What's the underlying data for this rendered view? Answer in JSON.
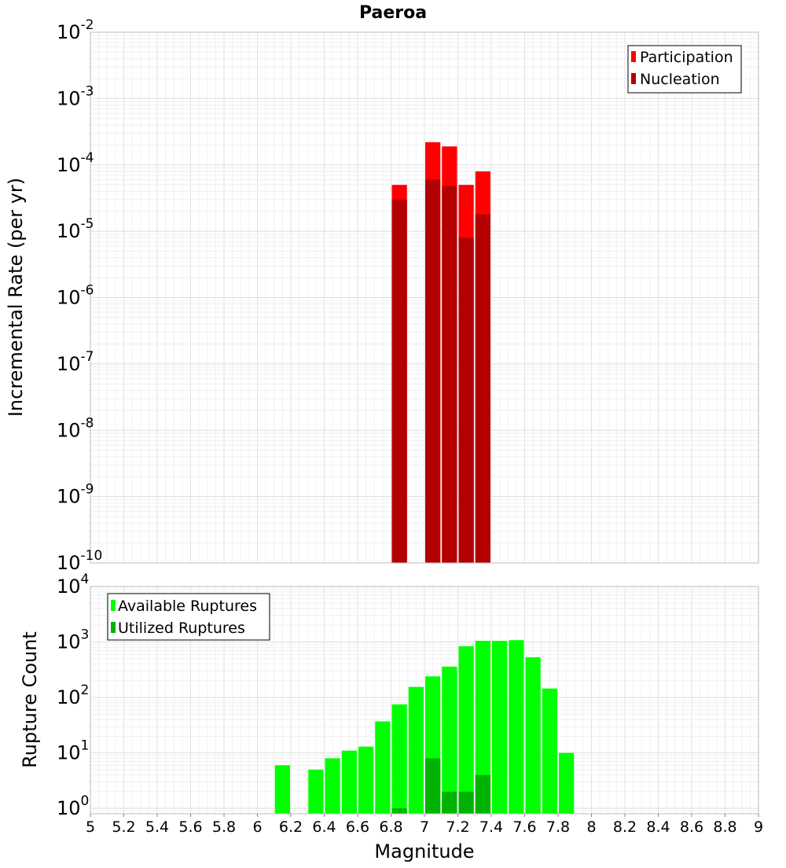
{
  "chart_data": [
    {
      "type": "bar",
      "title": "Paeroa",
      "xlabel": "",
      "ylabel": "Incremental Rate (per yr)",
      "yscale": "log",
      "ylim": [
        1e-10,
        0.01
      ],
      "xlim": [
        5,
        9
      ],
      "bin_width": 0.1,
      "legend_position": "top-right",
      "legend": [
        {
          "name": "Participation",
          "color": "#ff0000"
        },
        {
          "name": "Nucleation",
          "color": "#b30000"
        }
      ],
      "series": [
        {
          "name": "Participation",
          "color": "#ff0000",
          "x": [
            6.85,
            7.05,
            7.15,
            7.25,
            7.35
          ],
          "values": [
            5e-05,
            0.00022,
            0.00019,
            5e-05,
            8e-05
          ]
        },
        {
          "name": "Nucleation",
          "color": "#b30000",
          "x": [
            6.85,
            7.05,
            7.15,
            7.25,
            7.35
          ],
          "values": [
            3e-05,
            6e-05,
            4.8e-05,
            8e-06,
            1.8e-05
          ]
        }
      ],
      "ytick_exponents": [
        "-10",
        "-9",
        "-8",
        "-7",
        "-6",
        "-5",
        "-4",
        "-3",
        "-2"
      ]
    },
    {
      "type": "bar",
      "title": "",
      "xlabel": "Magnitude",
      "ylabel": "Rupture Count",
      "yscale": "log",
      "ylim": [
        0.8,
        10000
      ],
      "xlim": [
        5,
        9
      ],
      "bin_width": 0.1,
      "legend_position": "top-left",
      "legend": [
        {
          "name": "Available Ruptures",
          "color": "#00ff00"
        },
        {
          "name": "Utilized Ruptures",
          "color": "#00b300"
        }
      ],
      "series": [
        {
          "name": "Available Ruptures",
          "color": "#00ff00",
          "x": [
            6.15,
            6.35,
            6.45,
            6.55,
            6.65,
            6.75,
            6.85,
            6.95,
            7.05,
            7.15,
            7.25,
            7.35,
            7.45,
            7.55,
            7.65,
            7.75,
            7.85
          ],
          "values": [
            6,
            5,
            8,
            11,
            13,
            37,
            75,
            155,
            240,
            360,
            840,
            1050,
            1050,
            1080,
            530,
            145,
            10
          ]
        },
        {
          "name": "Utilized Ruptures",
          "color": "#00b300",
          "x": [
            6.85,
            7.05,
            7.15,
            7.25,
            7.35
          ],
          "values": [
            1,
            8,
            2,
            2,
            4
          ]
        }
      ],
      "ytick_exponents": [
        "0",
        "1",
        "2",
        "3",
        "4"
      ],
      "xtick_labels": [
        "5",
        "5.2",
        "5.4",
        "5.6",
        "5.8",
        "6",
        "6.2",
        "6.4",
        "6.6",
        "6.8",
        "7",
        "7.2",
        "7.4",
        "7.6",
        "7.8",
        "8",
        "8.2",
        "8.4",
        "8.6",
        "8.8",
        "9"
      ]
    }
  ]
}
